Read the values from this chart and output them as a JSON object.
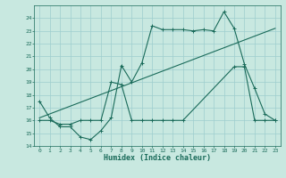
{
  "background_color": "#c8e8e0",
  "grid_color": "#9ecece",
  "line_color": "#1a6b5a",
  "xlabel": "Humidex (Indice chaleur)",
  "xlim": [
    -0.5,
    23.5
  ],
  "ylim": [
    14,
    25
  ],
  "yticks": [
    14,
    15,
    16,
    17,
    18,
    19,
    20,
    21,
    22,
    23,
    24
  ],
  "xticks": [
    0,
    1,
    2,
    3,
    4,
    5,
    6,
    7,
    8,
    9,
    10,
    11,
    12,
    13,
    14,
    15,
    16,
    17,
    18,
    19,
    20,
    21,
    22,
    23
  ],
  "line1_x": [
    0,
    1,
    2,
    3,
    4,
    5,
    6,
    7,
    8,
    9,
    10,
    11,
    12,
    13,
    14,
    15,
    16,
    17,
    18,
    19,
    20,
    21,
    22,
    23
  ],
  "line1_y": [
    17.5,
    16.2,
    15.5,
    15.5,
    14.7,
    14.5,
    15.2,
    16.2,
    20.3,
    19.0,
    20.5,
    23.4,
    23.1,
    23.1,
    23.1,
    23.0,
    23.1,
    23.0,
    24.5,
    23.2,
    20.4,
    18.5,
    16.5,
    16.0
  ],
  "line2_x": [
    0,
    1,
    2,
    3,
    4,
    5,
    6,
    7,
    8,
    9,
    10,
    11,
    12,
    13,
    14,
    19,
    20,
    21,
    22,
    23
  ],
  "line2_y": [
    16.0,
    16.0,
    15.7,
    15.7,
    16.0,
    16.0,
    16.0,
    19.0,
    18.8,
    16.0,
    16.0,
    16.0,
    16.0,
    16.0,
    16.0,
    20.2,
    20.2,
    16.0,
    16.0,
    16.0
  ],
  "line3_x": [
    0,
    23
  ],
  "line3_y": [
    16.2,
    23.2
  ]
}
